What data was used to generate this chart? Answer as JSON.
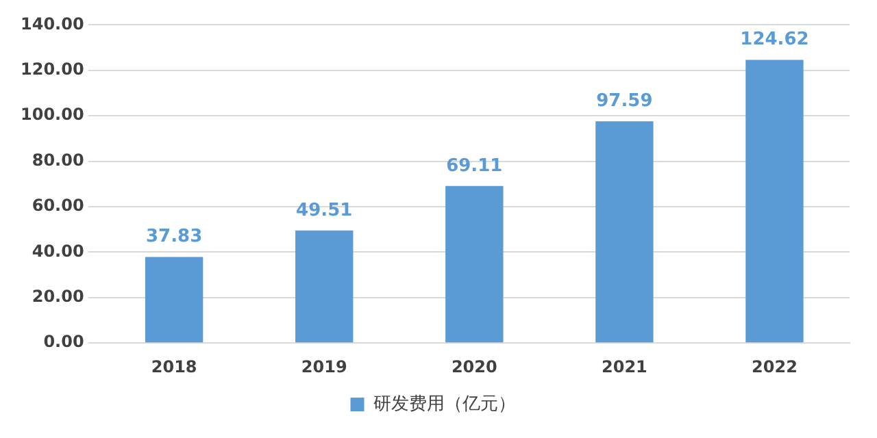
{
  "chart_data": {
    "type": "bar",
    "categories": [
      "2018",
      "2019",
      "2020",
      "2021",
      "2022"
    ],
    "series": [
      {
        "name": "研发费用（亿元）",
        "color": "#5b9bd5",
        "values": [
          37.83,
          49.51,
          69.11,
          97.59,
          124.62
        ]
      }
    ],
    "ylim": [
      0,
      140
    ],
    "yticks": [
      {
        "value": 0,
        "label": "0.00"
      },
      {
        "value": 20,
        "label": "20.00"
      },
      {
        "value": 40,
        "label": "40.00"
      },
      {
        "value": 60,
        "label": "60.00"
      },
      {
        "value": 80,
        "label": "80.00"
      },
      {
        "value": 100,
        "label": "100.00"
      },
      {
        "value": 120,
        "label": "120.00"
      },
      {
        "value": 140,
        "label": "140.00"
      }
    ],
    "grid": "y",
    "legend": "bottom",
    "data_labels": true
  }
}
